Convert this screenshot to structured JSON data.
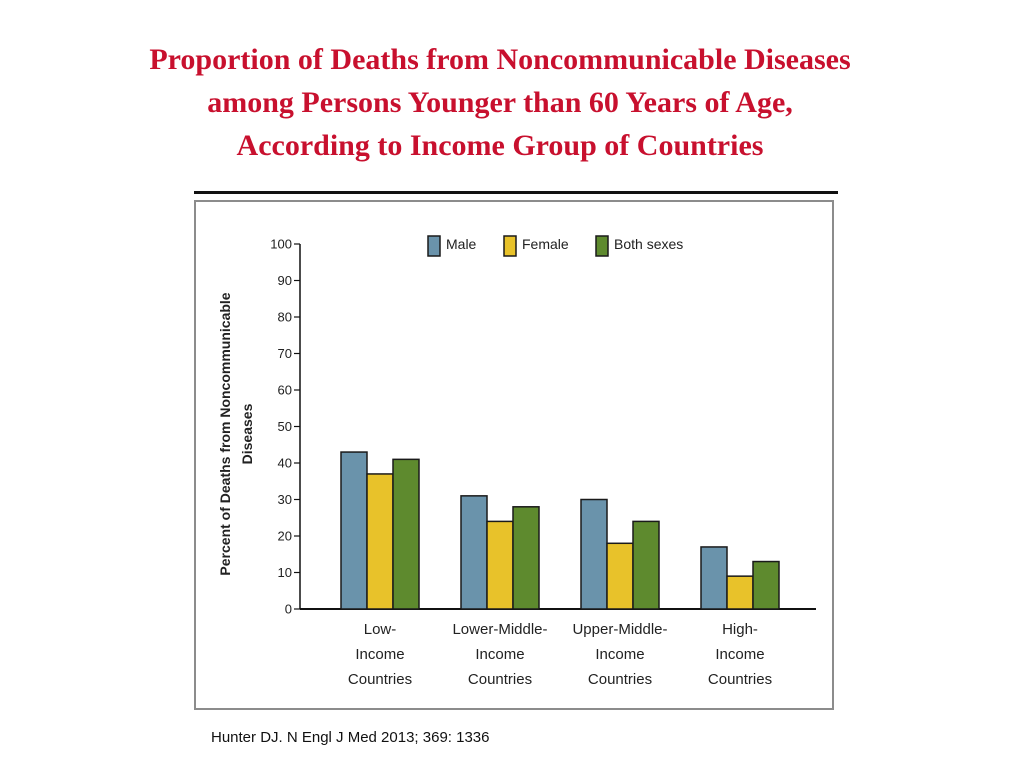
{
  "slide": {
    "title_lines": [
      "Proportion of Deaths from Noncommunicable Diseases",
      "among Persons Younger than 60 Years of Age,",
      "According to Income Group of Countries"
    ],
    "citation": "Hunter DJ. N Engl J Med 2013; 369: 1336"
  },
  "colors": {
    "title": "#c8102e",
    "male": "#6a93ab",
    "female": "#e8c22a",
    "both": "#5e8a2e",
    "outline": "#1a1a1a"
  },
  "chart_data": {
    "type": "bar",
    "title": "Proportion of Deaths from Noncommunicable Diseases among Persons Younger than 60 Years of Age, According to Income Group of Countries",
    "xlabel": "",
    "ylabel_lines": [
      "Percent of Deaths from Noncommunicable",
      "Diseases"
    ],
    "ylim": [
      0,
      100
    ],
    "yticks": [
      0,
      10,
      20,
      30,
      40,
      50,
      60,
      70,
      80,
      90,
      100
    ],
    "legend_position": "top",
    "categories": [
      [
        "Low-",
        "Income",
        "Countries"
      ],
      [
        "Lower-Middle-",
        "Income",
        "Countries"
      ],
      [
        "Upper-Middle-",
        "Income",
        "Countries"
      ],
      [
        "High-",
        "Income",
        "Countries"
      ]
    ],
    "series": [
      {
        "name": "Male",
        "color_key": "male",
        "values": [
          43,
          31,
          30,
          17
        ]
      },
      {
        "name": "Female",
        "color_key": "female",
        "values": [
          37,
          24,
          18,
          9
        ]
      },
      {
        "name": "Both sexes",
        "color_key": "both",
        "values": [
          41,
          28,
          24,
          13
        ]
      }
    ]
  }
}
